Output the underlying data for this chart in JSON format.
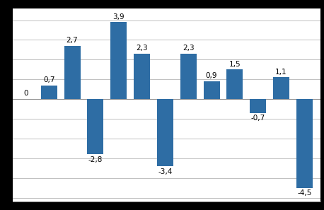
{
  "values": [
    0,
    0.7,
    2.7,
    -2.8,
    3.9,
    2.3,
    -3.4,
    2.3,
    0.9,
    1.5,
    -0.7,
    1.1,
    -4.5
  ],
  "bar_color": "#2E6DA4",
  "background_color": "#FFFFFF",
  "outer_background": "#000000",
  "ylim": [
    -5.2,
    4.6
  ],
  "yticks": [
    -5,
    -4,
    -3,
    -2,
    -1,
    0,
    1,
    2,
    3,
    4
  ],
  "grid_color": "#C0C0C0",
  "label_fontsize": 7.5,
  "bar_width": 0.7
}
